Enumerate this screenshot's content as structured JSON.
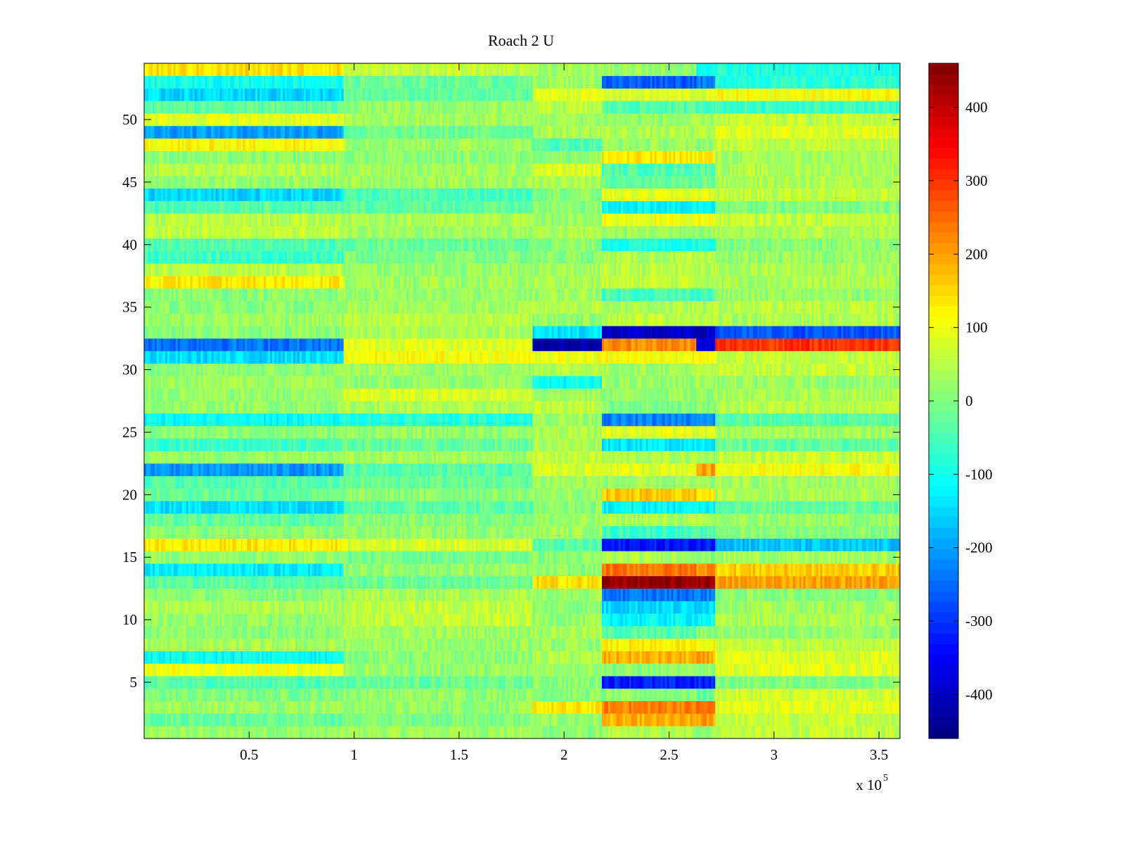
{
  "chart_data": {
    "type": "heatmap",
    "title": "Roach 2 U",
    "xlabel": "",
    "ylabel": "",
    "x_multiplier_label": "x 10",
    "x_multiplier_exponent": "5",
    "xlim": [
      0,
      3.6
    ],
    "ylim": [
      0.5,
      54.5
    ],
    "x_ticks": [
      0.5,
      1,
      1.5,
      2,
      2.5,
      3,
      3.5
    ],
    "x_tick_labels": [
      "0.5",
      "1",
      "1.5",
      "2",
      "2.5",
      "3",
      "3.5"
    ],
    "y_ticks": [
      5,
      10,
      15,
      20,
      25,
      30,
      35,
      40,
      45,
      50
    ],
    "y_tick_labels": [
      "5",
      "10",
      "15",
      "20",
      "25",
      "30",
      "35",
      "40",
      "45",
      "50"
    ],
    "colorbar": {
      "colormap": "jet",
      "range": [
        -460,
        460
      ],
      "ticks": [
        -400,
        -300,
        -200,
        -100,
        0,
        100,
        200,
        300,
        400
      ],
      "tick_labels": [
        "-400",
        "-300",
        "-200",
        "-100",
        "0",
        "100",
        "200",
        "300",
        "400"
      ]
    },
    "rows": 54,
    "approx_regions_x_units_1e5": {
      "columns_x": [
        0.0,
        0.95,
        1.85,
        2.18,
        2.63,
        2.72,
        3.6
      ],
      "note_values": "representative value per row per region (row 1 = bottom)"
    },
    "row_values": [
      [
        20,
        30,
        10,
        40,
        20,
        60,
        60
      ],
      [
        -20,
        0,
        20,
        180,
        200,
        60,
        60
      ],
      [
        30,
        20,
        130,
        230,
        240,
        90,
        90
      ],
      [
        0,
        20,
        10,
        10,
        -20,
        70,
        70
      ],
      [
        -40,
        -20,
        10,
        -320,
        -320,
        0,
        0
      ],
      [
        100,
        20,
        30,
        10,
        20,
        90,
        90
      ],
      [
        -110,
        10,
        40,
        180,
        190,
        80,
        80
      ],
      [
        30,
        20,
        20,
        120,
        110,
        60,
        60
      ],
      [
        10,
        30,
        40,
        -40,
        10,
        20,
        20
      ],
      [
        20,
        60,
        20,
        -120,
        -110,
        40,
        40
      ],
      [
        40,
        60,
        10,
        -150,
        -140,
        30,
        30
      ],
      [
        10,
        40,
        20,
        -240,
        -230,
        10,
        10
      ],
      [
        -30,
        -20,
        140,
        440,
        440,
        200,
        200
      ],
      [
        -130,
        20,
        10,
        240,
        220,
        160,
        160
      ],
      [
        20,
        -10,
        10,
        40,
        10,
        30,
        30
      ],
      [
        130,
        80,
        -40,
        -330,
        -320,
        -170,
        -170
      ],
      [
        10,
        20,
        30,
        -60,
        -50,
        10,
        10
      ],
      [
        -30,
        10,
        20,
        40,
        30,
        20,
        20
      ],
      [
        -140,
        -30,
        10,
        -120,
        -110,
        -20,
        -20
      ],
      [
        -20,
        10,
        20,
        160,
        150,
        40,
        40
      ],
      [
        -40,
        -20,
        30,
        20,
        20,
        30,
        30
      ],
      [
        -210,
        -40,
        80,
        90,
        200,
        110,
        110
      ],
      [
        20,
        30,
        60,
        40,
        30,
        60,
        60
      ],
      [
        -60,
        -20,
        40,
        -130,
        -120,
        -30,
        -30
      ],
      [
        10,
        20,
        40,
        90,
        80,
        30,
        30
      ],
      [
        -110,
        -80,
        30,
        -230,
        -220,
        -40,
        -40
      ],
      [
        20,
        40,
        60,
        0,
        10,
        50,
        50
      ],
      [
        20,
        80,
        30,
        20,
        20,
        40,
        40
      ],
      [
        30,
        20,
        -110,
        20,
        30,
        20,
        20
      ],
      [
        10,
        30,
        50,
        30,
        40,
        60,
        60
      ],
      [
        -150,
        110,
        100,
        110,
        120,
        60,
        60
      ],
      [
        -240,
        90,
        -420,
        220,
        -380,
        300,
        250
      ],
      [
        10,
        40,
        -140,
        -400,
        -400,
        -270,
        -270
      ],
      [
        30,
        50,
        20,
        60,
        50,
        40,
        40
      ],
      [
        10,
        30,
        50,
        40,
        40,
        50,
        50
      ],
      [
        10,
        20,
        30,
        -50,
        -50,
        20,
        20
      ],
      [
        130,
        30,
        40,
        60,
        50,
        40,
        40
      ],
      [
        50,
        20,
        30,
        50,
        40,
        40,
        40
      ],
      [
        -60,
        0,
        10,
        40,
        30,
        20,
        20
      ],
      [
        -40,
        -20,
        10,
        -90,
        -80,
        10,
        10
      ],
      [
        60,
        30,
        40,
        30,
        30,
        40,
        40
      ],
      [
        50,
        40,
        20,
        100,
        110,
        60,
        60
      ],
      [
        -40,
        -30,
        10,
        -120,
        -110,
        0,
        0
      ],
      [
        -150,
        -50,
        10,
        90,
        90,
        60,
        60
      ],
      [
        20,
        30,
        40,
        -20,
        -10,
        40,
        40
      ],
      [
        50,
        30,
        80,
        -40,
        -30,
        40,
        40
      ],
      [
        10,
        10,
        20,
        130,
        130,
        30,
        30
      ],
      [
        120,
        30,
        -40,
        20,
        20,
        60,
        60
      ],
      [
        -200,
        -20,
        40,
        40,
        40,
        90,
        90
      ],
      [
        90,
        30,
        30,
        20,
        20,
        60,
        60
      ],
      [
        -30,
        20,
        50,
        -40,
        -40,
        -60,
        -60
      ],
      [
        -150,
        -30,
        90,
        80,
        80,
        110,
        110
      ],
      [
        -100,
        -20,
        30,
        -260,
        -240,
        -80,
        -80
      ],
      [
        140,
        60,
        30,
        20,
        -100,
        -90,
        -90
      ]
    ]
  }
}
